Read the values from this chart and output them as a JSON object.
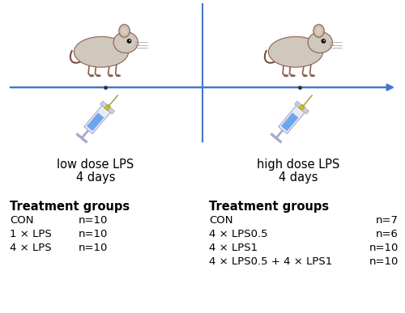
{
  "bg_color": "#ffffff",
  "arrow_color": "#4477cc",
  "divider_color": "#4477cc",
  "left_label_line1": "low dose LPS",
  "left_label_line2": "4 days",
  "right_label_line1": "high dose LPS",
  "right_label_line2": "4 days",
  "left_header": "Treatment groups",
  "left_rows": [
    [
      "CON",
      "n=10"
    ],
    [
      "1 × LPS",
      "n=10"
    ],
    [
      "4 × LPS",
      "n=10"
    ]
  ],
  "right_header": "Treatment groups",
  "right_rows": [
    [
      "CON",
      "n=7"
    ],
    [
      "4 × LPS0.5",
      "n=6"
    ],
    [
      "4 × LPS1",
      "n=10"
    ],
    [
      "4 × LPS0.5 + 4 × LPS1",
      "n=10"
    ]
  ],
  "text_color": "#000000",
  "header_fontsize": 10.5,
  "body_fontsize": 9.5,
  "label_fontsize": 10.5,
  "mouse_body_color": "#d0c8bc",
  "mouse_outline_color": "#8b6050",
  "syringe_barrel_color": "#e8eaf0",
  "syringe_liquid_color": "#5599ee",
  "syringe_needle_color": "#c8a040",
  "syringe_outline_color": "#aaaaaa"
}
